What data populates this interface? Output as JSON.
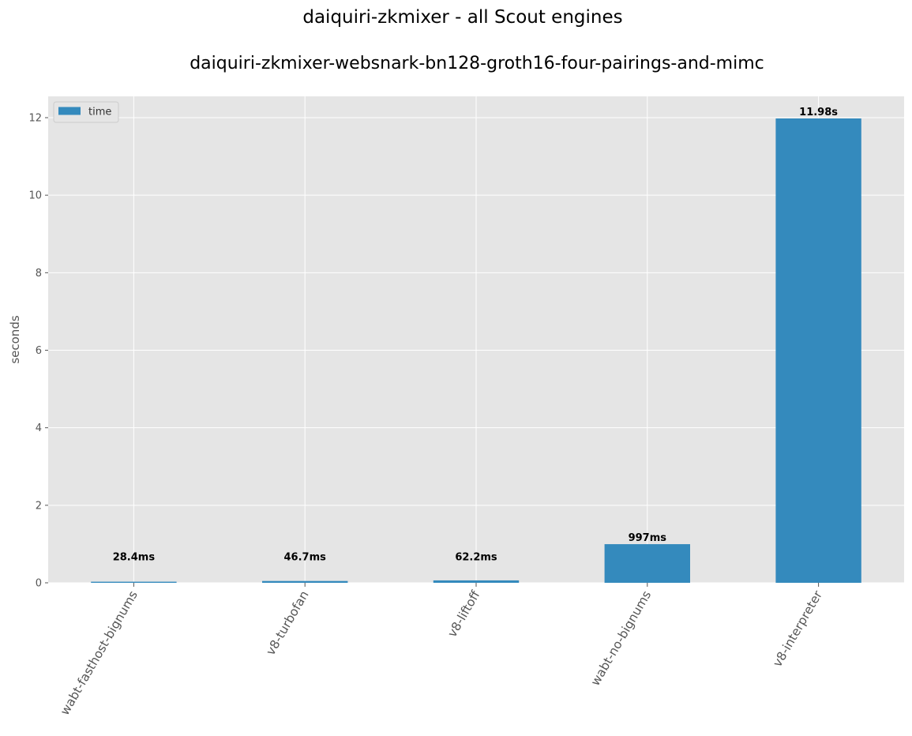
{
  "chart_data": {
    "type": "bar",
    "title": "daiquiri-zkmixer - all Scout engines",
    "subtitle": "daiquiri-zkmixer-websnark-bn128-groth16-four-pairings-and-mimc",
    "xlabel": "",
    "ylabel": "seconds",
    "categories": [
      "wabt-fasthost-bignums",
      "v8-turbofan",
      "v8-liftoff",
      "wabt-no-bignums",
      "v8-interpreter"
    ],
    "series": [
      {
        "name": "time",
        "values": [
          0.0284,
          0.0467,
          0.0622,
          0.997,
          11.98
        ],
        "labels": [
          "28.4ms",
          "46.7ms",
          "62.2ms",
          "997ms",
          "11.98s"
        ]
      }
    ],
    "ylim": [
      0,
      12.55
    ],
    "yticks": [
      "0",
      "2",
      "4",
      "6",
      "8",
      "10",
      "12"
    ],
    "grid": true,
    "legend_position": "top-left",
    "colors": {
      "bar": "#348ABD",
      "axes_background": "#E5E5E5",
      "grid": "#FFFFFF"
    }
  }
}
